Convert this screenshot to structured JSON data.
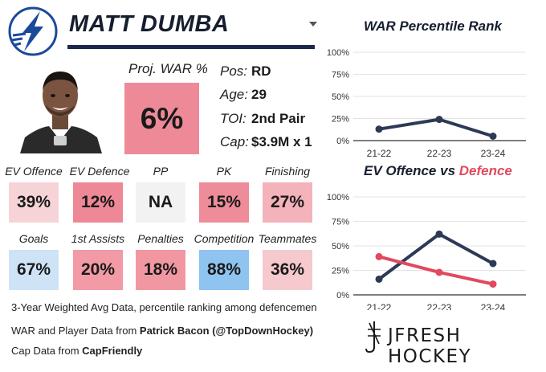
{
  "header": {
    "player_name": "MATT DUMBA",
    "logo_icon": "lightning-bolt-icon",
    "team_color": "#1b2a4a"
  },
  "proj_war": {
    "label": "Proj. WAR %",
    "value": "6%",
    "color": "#ee8a97"
  },
  "info": [
    {
      "key": "Pos:",
      "value": "RD"
    },
    {
      "key": "Age:",
      "value": "29"
    },
    {
      "key": "TOI:",
      "value": "2nd Pair"
    },
    {
      "key": "Cap:",
      "value": "$3.9M x 1"
    }
  ],
  "stats_row1": [
    {
      "label": "EV Offence",
      "value": "39%",
      "color": "#f6d3d7"
    },
    {
      "label": "EV Defence",
      "value": "12%",
      "color": "#ef8896"
    },
    {
      "label": "PP",
      "value": "NA",
      "color": "#f2f2f2"
    },
    {
      "label": "PK",
      "value": "15%",
      "color": "#ef8c99"
    },
    {
      "label": "Finishing",
      "value": "27%",
      "color": "#f4b2bb"
    }
  ],
  "stats_row2": [
    {
      "label": "Goals",
      "value": "67%",
      "color": "#cfe3f7"
    },
    {
      "label": "1st Assists",
      "value": "20%",
      "color": "#f29aa5"
    },
    {
      "label": "Penalties",
      "value": "18%",
      "color": "#f197a2"
    },
    {
      "label": "Competition",
      "value": "88%",
      "color": "#8fc3f0"
    },
    {
      "label": "Teammates",
      "value": "36%",
      "color": "#f5c9ce"
    }
  ],
  "footnote": "3-Year Weighted Avg Data, percentile ranking among defencemen",
  "credits": [
    {
      "prefix": "WAR and Player Data from ",
      "source": "Patrick Bacon (@TopDownHockey)"
    },
    {
      "prefix": "Cap Data from ",
      "source": "CapFriendly"
    }
  ],
  "brand": {
    "name": "JFRESH HOCKEY"
  },
  "chart_data": [
    {
      "type": "line",
      "title": "WAR Percentile Rank",
      "x": [
        "21-22",
        "22-23",
        "23-24"
      ],
      "y_ticks": [
        "0%",
        "25%",
        "50%",
        "75%",
        "100%"
      ],
      "ylim": [
        0,
        100
      ],
      "grid": true,
      "series": [
        {
          "values": [
            13,
            24,
            5
          ],
          "color": "#2d3a55"
        }
      ]
    },
    {
      "type": "line",
      "title_parts": [
        "EV Offence",
        " vs ",
        "Defence"
      ],
      "x": [
        "21-22",
        "22-23",
        "23-24"
      ],
      "y_ticks": [
        "0%",
        "25%",
        "50%",
        "75%",
        "100%"
      ],
      "ylim": [
        0,
        100
      ],
      "grid": true,
      "series": [
        {
          "values": [
            16,
            62,
            32
          ],
          "color": "#2d3a55"
        },
        {
          "values": [
            39,
            23,
            11
          ],
          "color": "#e2495e"
        }
      ]
    }
  ]
}
